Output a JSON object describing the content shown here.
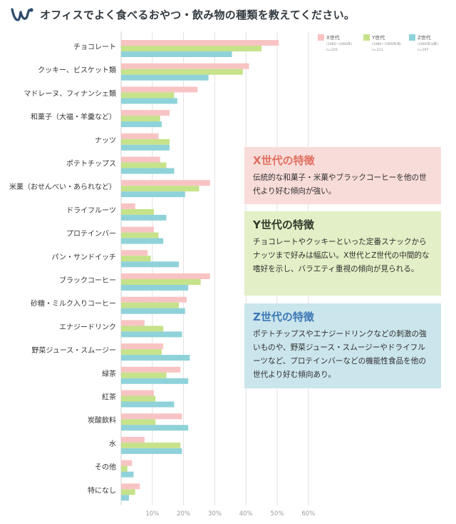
{
  "title": "オフィスでよく食べるおやつ・飲み物の種類を教えてください。",
  "colors": {
    "x": "#f8c4c3",
    "y": "#c6e28a",
    "z": "#8fd2d9",
    "grid": "#e2e2e2"
  },
  "legend": [
    {
      "key": "x",
      "label": "X世代",
      "range": "(1965～1980年)",
      "n": "n=226"
    },
    {
      "key": "y",
      "label": "Y世代",
      "range": "(1980～1995年頃)",
      "n": "n=211"
    },
    {
      "key": "z",
      "label": "Z世代",
      "range": "(1995年以降)",
      "n": "n=197"
    }
  ],
  "notes": {
    "x": {
      "title": "X世代の特徴",
      "body": "伝統的な和菓子・米菓やブラックコーヒーを他の世代より好む傾向が強い。"
    },
    "y": {
      "title": "Y世代の特徴",
      "body": "チョコレートやクッキーといった定番スナックからナッツまで好みは幅広い。X世代とZ世代の中間的な嗜好を示し、バラエティ重視の傾向が見られる。"
    },
    "z": {
      "title": "Z世代の特徴",
      "body": "ポテトチップスやエナジードリンクなどの刺激の強いものや、野菜ジュース・スムージーやドライフルーツなど、プロテインバーなどの機能性食品を他の世代より好む傾向あり。"
    }
  },
  "chart_data": {
    "type": "bar",
    "orientation": "horizontal",
    "categories": [
      "チョコレート",
      "クッキー、ビスケット類",
      "マドレーヌ、フィナンシェ類",
      "和菓子（大福・羊羹など）",
      "ナッツ",
      "ポテトチップス",
      "米菓（おせんべい・あられなど）",
      "ドライフルーツ",
      "プロテインバー",
      "パン・サンドイッチ",
      "ブラックコーヒー",
      "砂糖・ミルク入りコーヒー",
      "エナジードリンク",
      "野菜ジュース・スムージー",
      "緑茶",
      "紅茶",
      "炭酸飲料",
      "水",
      "その他",
      "特になし"
    ],
    "series": [
      {
        "name": "X世代",
        "values": [
          50.5,
          41,
          24.5,
          15.5,
          12,
          12.5,
          28.5,
          4.5,
          10.5,
          8.5,
          28.5,
          21,
          7.5,
          13.5,
          19,
          10.5,
          19.5,
          7.5,
          3.5,
          6
        ]
      },
      {
        "name": "Y世代",
        "values": [
          45,
          39,
          17,
          12.5,
          15.5,
          14.5,
          25,
          10.5,
          12,
          9.5,
          25.5,
          18.5,
          13.5,
          13,
          14.5,
          11,
          11,
          19,
          2,
          4.5
        ]
      },
      {
        "name": "Z世代",
        "values": [
          35.5,
          28,
          18,
          13,
          15.5,
          17,
          20.5,
          14.5,
          13.5,
          18.5,
          21.5,
          20.5,
          19.5,
          22,
          21.5,
          17,
          21.5,
          19.5,
          4,
          2.5
        ]
      }
    ],
    "xticks": [
      "10%",
      "20%",
      "30%",
      "40%",
      "50%",
      "60%"
    ],
    "xlim": [
      0,
      60
    ],
    "grid": true,
    "legend_position": "top-right"
  }
}
